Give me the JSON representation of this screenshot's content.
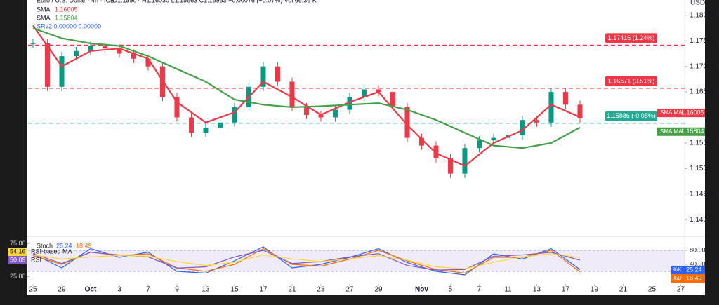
{
  "chart_data": [
    {
      "type": "candlestick",
      "title": "Euro / U.S. Dollar · 4h · ICE",
      "ohlc_text": "O1.15907 H1.16030 L1.15863 C1.15983 +0.00076 (+0.07%) Vol 66.36 K",
      "extra_legend": "SRv2 0.00000 0.00000",
      "currency": "USD",
      "tag_label": "SMA:MA",
      "up_color": "#089981",
      "down_color": "#f23645",
      "x": [
        0,
        1,
        2,
        3,
        4,
        5,
        6,
        7,
        8,
        9,
        10,
        11,
        12,
        13,
        14,
        15,
        16,
        17,
        18,
        19,
        20,
        21,
        22,
        23,
        24,
        25,
        26,
        27,
        28,
        29,
        30,
        31,
        32,
        33,
        34,
        35,
        36,
        37,
        38
      ],
      "close": [
        1.1745,
        1.166,
        1.172,
        1.173,
        1.174,
        1.1735,
        1.1725,
        1.1715,
        1.17,
        1.164,
        1.16,
        1.157,
        1.158,
        1.159,
        1.162,
        1.166,
        1.17,
        1.167,
        1.162,
        1.1605,
        1.16,
        1.1615,
        1.164,
        1.1655,
        1.165,
        1.162,
        1.156,
        1.1545,
        1.152,
        1.149,
        1.154,
        1.1555,
        1.156,
        1.1565,
        1.1595,
        1.159,
        1.165,
        1.1625,
        1.1598
      ],
      "series": [
        {
          "name": "SMA",
          "color": "#f23645",
          "x": [
            0,
            2,
            4,
            6,
            8,
            10,
            12,
            14,
            16,
            18,
            20,
            22,
            24,
            26,
            28,
            30,
            32,
            34,
            36,
            38
          ],
          "values": [
            1.178,
            1.17,
            1.173,
            1.1735,
            1.1715,
            1.163,
            1.159,
            1.161,
            1.167,
            1.164,
            1.1605,
            1.163,
            1.165,
            1.1585,
            1.153,
            1.1505,
            1.155,
            1.1575,
            1.1625,
            1.16005
          ]
        },
        {
          "name": "SMA",
          "color": "#43a047",
          "x": [
            0,
            2,
            4,
            6,
            8,
            10,
            12,
            14,
            16,
            18,
            20,
            22,
            24,
            26,
            28,
            30,
            32,
            34,
            36,
            38
          ],
          "values": [
            1.1775,
            1.1755,
            1.1745,
            1.174,
            1.172,
            1.1695,
            1.167,
            1.1635,
            1.1625,
            1.162,
            1.1622,
            1.1625,
            1.1628,
            1.1615,
            1.1595,
            1.157,
            1.1545,
            1.154,
            1.155,
            1.15804
          ]
        }
      ],
      "levels": [
        {
          "value": 1.17416,
          "label": "1.17416 (1.24%)",
          "color": "#f23645"
        },
        {
          "value": 1.16571,
          "label": "1.16571 (0.51%)",
          "color": "#f23645"
        },
        {
          "value": 1.15886,
          "label": "1.15886 (-0.08%)",
          "color": "#22ab94"
        }
      ],
      "xlim": [
        -0.34,
        45.27
      ],
      "xticks": [
        {
          "value": 0,
          "label": "25"
        },
        {
          "value": 2,
          "label": "29"
        },
        {
          "value": 4,
          "label": "Oct"
        },
        {
          "value": 6,
          "label": "3"
        },
        {
          "value": 8,
          "label": "7"
        },
        {
          "value": 10,
          "label": "9"
        },
        {
          "value": 12,
          "label": "13"
        },
        {
          "value": 14,
          "label": "15"
        },
        {
          "value": 16,
          "label": "17"
        },
        {
          "value": 18,
          "label": "21"
        },
        {
          "value": 20,
          "label": "23"
        },
        {
          "value": 22,
          "label": "27"
        },
        {
          "value": 24,
          "label": "29"
        },
        {
          "value": 27,
          "label": "Nov"
        },
        {
          "value": 29,
          "label": "5"
        },
        {
          "value": 31,
          "label": "7"
        },
        {
          "value": 33,
          "label": "11"
        },
        {
          "value": 35,
          "label": "13"
        },
        {
          "value": 37,
          "label": "17"
        },
        {
          "value": 39,
          "label": "19"
        },
        {
          "value": 41,
          "label": "21"
        },
        {
          "value": 43,
          "label": "25"
        },
        {
          "value": 45,
          "label": "27"
        }
      ],
      "ylim": [
        1.137,
        1.183
      ],
      "yticks": [
        {
          "value": 1.18,
          "label": "1.18000"
        },
        {
          "value": 1.175,
          "label": "1.17500"
        },
        {
          "value": 1.17,
          "label": "1.17000"
        },
        {
          "value": 1.165,
          "label": "1.16500"
        },
        {
          "value": 1.155,
          "label": "1.15500"
        },
        {
          "value": 1.15,
          "label": "1.15000"
        },
        {
          "value": 1.145,
          "label": "1.14500"
        },
        {
          "value": 1.14,
          "label": "1.14000"
        }
      ]
    },
    {
      "type": "line",
      "title": "Stoch",
      "band": [
        20,
        80
      ],
      "series": [
        {
          "name": "%K",
          "color": "#2962ff",
          "axis": "y2",
          "x": [
            0,
            2,
            4,
            6,
            8,
            10,
            12,
            14,
            16,
            18,
            20,
            22,
            24,
            26,
            28,
            30,
            32,
            34,
            36,
            38
          ],
          "values": [
            70,
            30,
            85,
            60,
            75,
            20,
            15,
            50,
            90,
            30,
            40,
            60,
            85,
            45,
            20,
            10,
            70,
            55,
            85,
            25.24
          ]
        },
        {
          "name": "%D",
          "color": "#ff6d00",
          "axis": "y2",
          "x": [
            0,
            2,
            4,
            6,
            8,
            10,
            12,
            14,
            16,
            18,
            20,
            22,
            24,
            26,
            28,
            30,
            32,
            34,
            36,
            38
          ],
          "values": [
            65,
            40,
            75,
            65,
            70,
            30,
            20,
            40,
            85,
            40,
            35,
            55,
            80,
            50,
            25,
            15,
            60,
            60,
            80,
            18.49
          ]
        },
        {
          "name": "RSI",
          "color": "#7e57c2",
          "x": [
            0,
            2,
            4,
            6,
            8,
            10,
            12,
            14,
            16,
            18,
            20,
            22,
            24,
            26,
            28,
            30,
            32,
            34,
            36,
            38
          ],
          "values": [
            60,
            45,
            62,
            58,
            55,
            38,
            40,
            55,
            65,
            45,
            48,
            55,
            60,
            42,
            35,
            36,
            56,
            58,
            62,
            50.09
          ]
        },
        {
          "name": "RSI-based MA",
          "color": "#fdd835",
          "x": [
            0,
            2,
            4,
            6,
            8,
            10,
            12,
            14,
            16,
            18,
            20,
            22,
            24,
            26,
            28,
            30,
            32,
            34,
            36,
            38
          ],
          "values": [
            58,
            52,
            55,
            57,
            56,
            48,
            42,
            47,
            58,
            52,
            48,
            52,
            57,
            50,
            40,
            37,
            47,
            55,
            60,
            54.16
          ]
        }
      ],
      "ylim": [
        16,
        81
      ],
      "yticks": [
        {
          "value": 75,
          "label": "75.00"
        },
        {
          "value": 25,
          "label": "25.00"
        }
      ],
      "y2lim": [
        -12,
        110
      ],
      "y2ticks": [
        {
          "value": 80,
          "label": "80.00"
        },
        {
          "value": 40,
          "label": "40.00"
        }
      ]
    }
  ]
}
